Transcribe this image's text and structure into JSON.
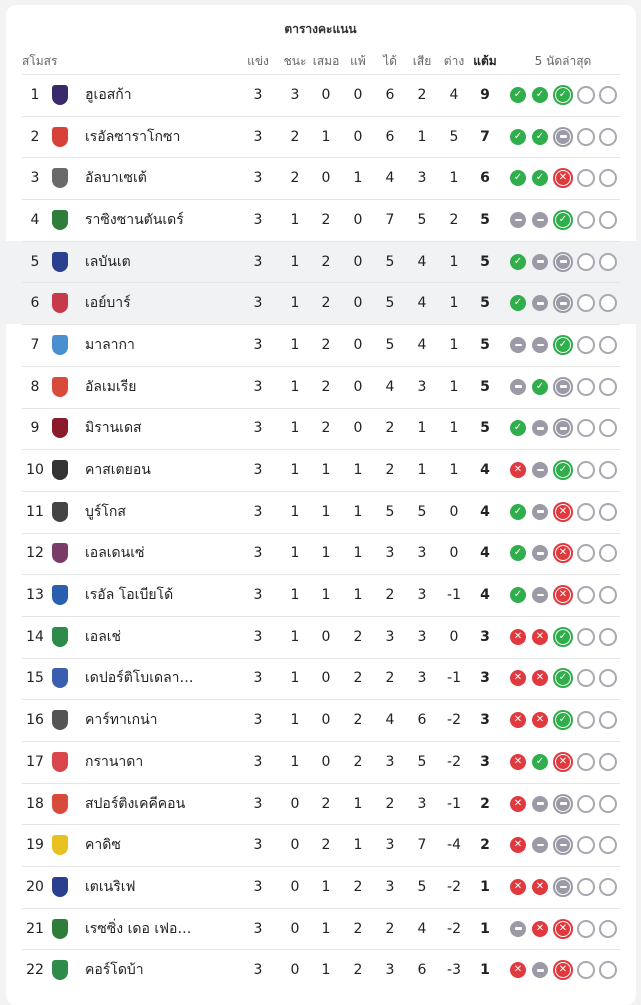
{
  "title": "ตารางคะแนน",
  "headers": {
    "club": "สโมสร",
    "played": "แข่ง",
    "won": "ชนะ",
    "drawn": "เสมอ",
    "lost": "แพ้",
    "gf": "ได้",
    "ga": "เสีย",
    "gd": "ต่าง",
    "pts": "แต้ม",
    "form": "5 นัดล่าสุด"
  },
  "colors": {
    "win": "#2fae4b",
    "draw": "#9b9aa6",
    "loss": "#e0393e"
  },
  "rows": [
    {
      "pos": "1",
      "name": "ฮูเอสก้า",
      "p": "3",
      "w": "3",
      "d": "0",
      "l": "0",
      "gf": "6",
      "ga": "2",
      "gd": "4",
      "pts": "9",
      "form": [
        "W",
        "W",
        "W"
      ],
      "logo": "#3b2a6b"
    },
    {
      "pos": "2",
      "name": "เรอัลซาราโกซา",
      "p": "3",
      "w": "2",
      "d": "1",
      "l": "0",
      "gf": "6",
      "ga": "1",
      "gd": "5",
      "pts": "7",
      "form": [
        "W",
        "W",
        "D"
      ],
      "logo": "#d8413a"
    },
    {
      "pos": "3",
      "name": "อัลบาเซเต้",
      "p": "3",
      "w": "2",
      "d": "0",
      "l": "1",
      "gf": "4",
      "ga": "3",
      "gd": "1",
      "pts": "6",
      "form": [
        "W",
        "W",
        "L"
      ],
      "logo": "#6a6a6a"
    },
    {
      "pos": "4",
      "name": "ราซิงซานตันเดร์",
      "p": "3",
      "w": "1",
      "d": "2",
      "l": "0",
      "gf": "7",
      "ga": "5",
      "gd": "2",
      "pts": "5",
      "form": [
        "D",
        "D",
        "W"
      ],
      "logo": "#2e7d3a"
    },
    {
      "pos": "5",
      "name": "เลบันเต",
      "p": "3",
      "w": "1",
      "d": "2",
      "l": "0",
      "gf": "5",
      "ga": "4",
      "gd": "1",
      "pts": "5",
      "form": [
        "W",
        "D",
        "D"
      ],
      "logo": "#2a3f8f",
      "hl": true
    },
    {
      "pos": "6",
      "name": "เอย์บาร์",
      "p": "3",
      "w": "1",
      "d": "2",
      "l": "0",
      "gf": "5",
      "ga": "4",
      "gd": "1",
      "pts": "5",
      "form": [
        "W",
        "D",
        "D"
      ],
      "logo": "#c73a4a",
      "hl": true
    },
    {
      "pos": "7",
      "name": "มาลากา",
      "p": "3",
      "w": "1",
      "d": "2",
      "l": "0",
      "gf": "5",
      "ga": "4",
      "gd": "1",
      "pts": "5",
      "form": [
        "D",
        "D",
        "W"
      ],
      "logo": "#4a8fd0"
    },
    {
      "pos": "8",
      "name": "อัลเมเรีย",
      "p": "3",
      "w": "1",
      "d": "2",
      "l": "0",
      "gf": "4",
      "ga": "3",
      "gd": "1",
      "pts": "5",
      "form": [
        "D",
        "W",
        "D"
      ],
      "logo": "#d84a3a"
    },
    {
      "pos": "9",
      "name": "มิรานเดส",
      "p": "3",
      "w": "1",
      "d": "2",
      "l": "0",
      "gf": "2",
      "ga": "1",
      "gd": "1",
      "pts": "5",
      "form": [
        "W",
        "D",
        "D"
      ],
      "logo": "#8b1a2a"
    },
    {
      "pos": "10",
      "name": "คาสเตยอน",
      "p": "3",
      "w": "1",
      "d": "1",
      "l": "1",
      "gf": "2",
      "ga": "1",
      "gd": "1",
      "pts": "4",
      "form": [
        "L",
        "D",
        "W"
      ],
      "logo": "#333333"
    },
    {
      "pos": "11",
      "name": "บูร์โกส",
      "p": "3",
      "w": "1",
      "d": "1",
      "l": "1",
      "gf": "5",
      "ga": "5",
      "gd": "0",
      "pts": "4",
      "form": [
        "W",
        "D",
        "L"
      ],
      "logo": "#444444"
    },
    {
      "pos": "12",
      "name": "เอลเดนเซ่",
      "p": "3",
      "w": "1",
      "d": "1",
      "l": "1",
      "gf": "3",
      "ga": "3",
      "gd": "0",
      "pts": "4",
      "form": [
        "W",
        "D",
        "L"
      ],
      "logo": "#7a3a6a"
    },
    {
      "pos": "13",
      "name": "เรอัล โอเบียโด้",
      "p": "3",
      "w": "1",
      "d": "1",
      "l": "1",
      "gf": "2",
      "ga": "3",
      "gd": "-1",
      "pts": "4",
      "form": [
        "W",
        "D",
        "L"
      ],
      "logo": "#2a5fb0"
    },
    {
      "pos": "14",
      "name": "เอลเช่",
      "p": "3",
      "w": "1",
      "d": "0",
      "l": "2",
      "gf": "3",
      "ga": "3",
      "gd": "0",
      "pts": "3",
      "form": [
        "L",
        "L",
        "W"
      ],
      "logo": "#2e8b4a"
    },
    {
      "pos": "15",
      "name": "เดปอร์ติโบเดลา…",
      "p": "3",
      "w": "1",
      "d": "0",
      "l": "2",
      "gf": "2",
      "ga": "3",
      "gd": "-1",
      "pts": "3",
      "form": [
        "L",
        "L",
        "W"
      ],
      "logo": "#3a5fb0"
    },
    {
      "pos": "16",
      "name": "คาร์ทาเกน่า",
      "p": "3",
      "w": "1",
      "d": "0",
      "l": "2",
      "gf": "4",
      "ga": "6",
      "gd": "-2",
      "pts": "3",
      "form": [
        "L",
        "L",
        "W"
      ],
      "logo": "#555555"
    },
    {
      "pos": "17",
      "name": "กรานาดา",
      "p": "3",
      "w": "1",
      "d": "0",
      "l": "2",
      "gf": "3",
      "ga": "5",
      "gd": "-2",
      "pts": "3",
      "form": [
        "L",
        "W",
        "L"
      ],
      "logo": "#d8454a"
    },
    {
      "pos": "18",
      "name": "สปอร์ติงเคคีคอน",
      "p": "3",
      "w": "0",
      "d": "2",
      "l": "1",
      "gf": "2",
      "ga": "3",
      "gd": "-1",
      "pts": "2",
      "form": [
        "L",
        "D",
        "D"
      ],
      "logo": "#d84a3a"
    },
    {
      "pos": "19",
      "name": "คาดิซ",
      "p": "3",
      "w": "0",
      "d": "2",
      "l": "1",
      "gf": "3",
      "ga": "7",
      "gd": "-4",
      "pts": "2",
      "form": [
        "L",
        "D",
        "D"
      ],
      "logo": "#e8c020"
    },
    {
      "pos": "20",
      "name": "เตเนริเฟ",
      "p": "3",
      "w": "0",
      "d": "1",
      "l": "2",
      "gf": "3",
      "ga": "5",
      "gd": "-2",
      "pts": "1",
      "form": [
        "L",
        "L",
        "D"
      ],
      "logo": "#2a3f8f"
    },
    {
      "pos": "21",
      "name": "เรซซิ่ง เดอ เฟอ…",
      "p": "3",
      "w": "0",
      "d": "1",
      "l": "2",
      "gf": "2",
      "ga": "4",
      "gd": "-2",
      "pts": "1",
      "form": [
        "D",
        "L",
        "L"
      ],
      "logo": "#2e7d3a"
    },
    {
      "pos": "22",
      "name": "คอร์โดบ้า",
      "p": "3",
      "w": "0",
      "d": "1",
      "l": "2",
      "gf": "3",
      "ga": "6",
      "gd": "-3",
      "pts": "1",
      "form": [
        "L",
        "D",
        "L"
      ],
      "logo": "#2e8b4a"
    }
  ]
}
